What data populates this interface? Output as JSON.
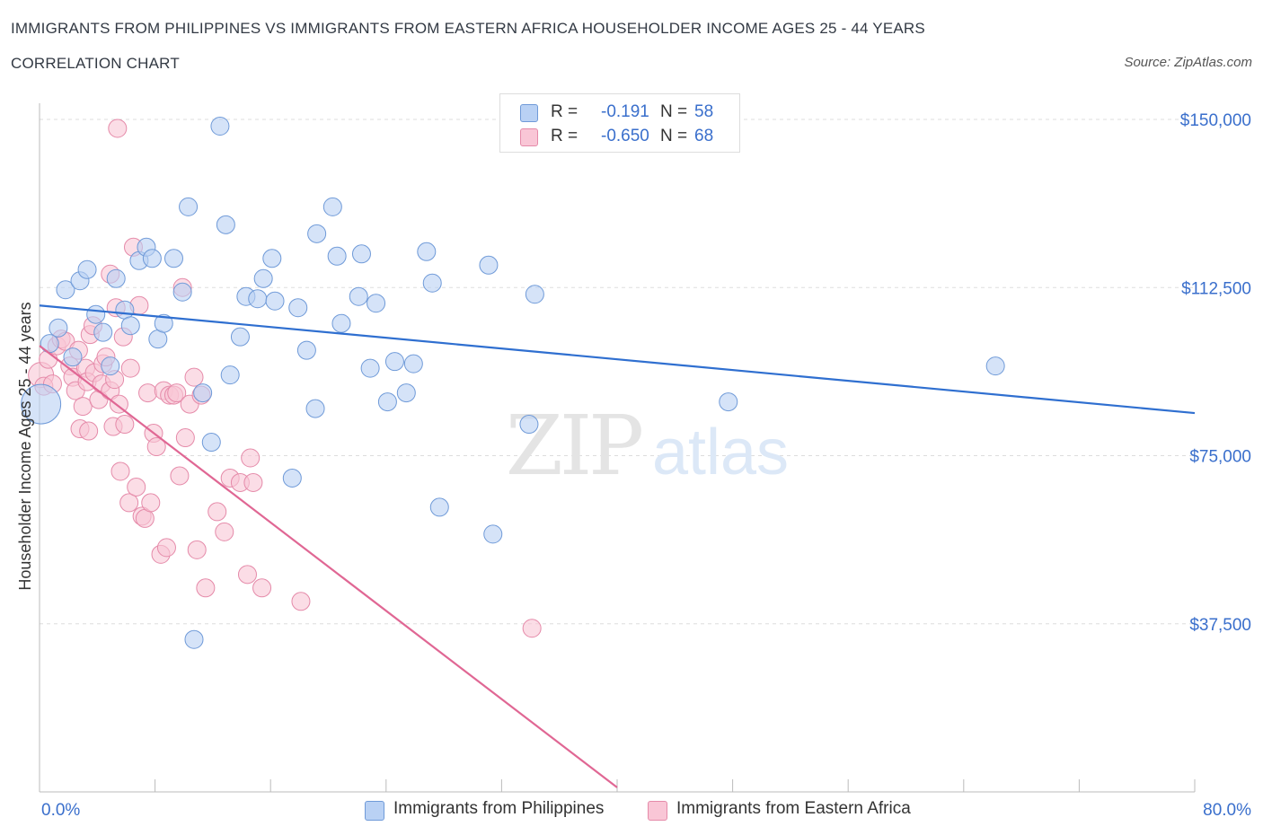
{
  "title": "IMMIGRANTS FROM PHILIPPINES VS IMMIGRANTS FROM EASTERN AFRICA HOUSEHOLDER INCOME AGES 25 - 44 YEARS",
  "subtitle": "CORRELATION CHART",
  "source": "Source: ZipAtlas.com",
  "watermark": {
    "zip": "ZIP",
    "atlas": "atlas"
  },
  "colors": {
    "blue_fill": "#b9d1f4",
    "blue_stroke": "#6f9ad8",
    "blue_line": "#2f6fd0",
    "pink_fill": "#f9c6d6",
    "pink_stroke": "#e58aa9",
    "pink_line": "#e06794",
    "tick_label": "#3a6fcc",
    "grid": "#dddddd"
  },
  "legend_top": {
    "rows": [
      {
        "series": "blue",
        "r_label": "R =",
        "r_value": "-0.191",
        "n_label": "N =",
        "n_value": "58"
      },
      {
        "series": "pink",
        "r_label": "R =",
        "r_value": "-0.650",
        "n_label": "N =",
        "n_value": "68"
      }
    ]
  },
  "legend_bottom": [
    {
      "series": "blue",
      "label": "Immigrants from Philippines"
    },
    {
      "series": "pink",
      "label": "Immigrants from Eastern Africa"
    }
  ],
  "chart_data": {
    "type": "scatter",
    "ylabel": "Householder Income Ages 25 - 44 years",
    "xlim": [
      0,
      80
    ],
    "ylim": [
      0,
      150000
    ],
    "x_tick_labels": [
      {
        "x": 0,
        "label": "0.0%"
      },
      {
        "x": 80,
        "label": "80.0%"
      }
    ],
    "y_ticks": [
      {
        "y": 37500,
        "label": "$37,500"
      },
      {
        "y": 75000,
        "label": "$75,000"
      },
      {
        "y": 112500,
        "label": "$112,500"
      },
      {
        "y": 150000,
        "label": "$150,000"
      }
    ],
    "grid": true,
    "series": [
      {
        "name": "Immigrants from Philippines",
        "color": "blue",
        "r": -0.191,
        "n": 58,
        "trend": {
          "x0": 0,
          "y0": 108500,
          "x1": 80,
          "y1": 84500
        },
        "points": [
          [
            0.1,
            86500,
            2.2
          ],
          [
            0.7,
            100000,
            1
          ],
          [
            1.3,
            103500,
            1
          ],
          [
            1.8,
            112000,
            1
          ],
          [
            2.3,
            97000,
            1
          ],
          [
            2.8,
            114000,
            1
          ],
          [
            3.3,
            116500,
            1
          ],
          [
            3.9,
            106500,
            1
          ],
          [
            4.4,
            102500,
            1
          ],
          [
            4.9,
            95000,
            1
          ],
          [
            5.3,
            114500,
            1
          ],
          [
            5.9,
            107500,
            1
          ],
          [
            6.3,
            104000,
            1
          ],
          [
            6.9,
            118500,
            1
          ],
          [
            7.4,
            121500,
            1
          ],
          [
            7.8,
            119000,
            1
          ],
          [
            8.2,
            101000,
            1
          ],
          [
            8.6,
            104500,
            1
          ],
          [
            9.3,
            119000,
            1
          ],
          [
            9.9,
            111500,
            1
          ],
          [
            10.3,
            130500,
            1
          ],
          [
            11.3,
            89000,
            1
          ],
          [
            11.9,
            78000,
            1
          ],
          [
            12.5,
            148500,
            1
          ],
          [
            12.9,
            126500,
            1
          ],
          [
            13.2,
            93000,
            1
          ],
          [
            13.9,
            101500,
            1
          ],
          [
            14.3,
            110500,
            1
          ],
          [
            15.1,
            110000,
            1
          ],
          [
            15.5,
            114500,
            1
          ],
          [
            16.1,
            119000,
            1
          ],
          [
            16.3,
            109500,
            1
          ],
          [
            17.5,
            70000,
            1
          ],
          [
            17.9,
            108000,
            1
          ],
          [
            18.5,
            98500,
            1
          ],
          [
            19.1,
            85500,
            1
          ],
          [
            19.2,
            124500,
            1
          ],
          [
            20.3,
            130500,
            1
          ],
          [
            20.6,
            119500,
            1
          ],
          [
            20.9,
            104500,
            1
          ],
          [
            22.1,
            110500,
            1
          ],
          [
            22.3,
            120000,
            1
          ],
          [
            22.9,
            94500,
            1
          ],
          [
            23.3,
            109000,
            1
          ],
          [
            24.1,
            87000,
            1
          ],
          [
            24.6,
            96000,
            1
          ],
          [
            25.4,
            89000,
            1
          ],
          [
            25.9,
            95500,
            1
          ],
          [
            26.8,
            120500,
            1
          ],
          [
            27.2,
            113500,
            1
          ],
          [
            27.7,
            63500,
            1
          ],
          [
            31.1,
            117500,
            1
          ],
          [
            31.4,
            57500,
            1
          ],
          [
            33.9,
            82000,
            1
          ],
          [
            34.3,
            111000,
            1
          ],
          [
            47.7,
            87000,
            1
          ],
          [
            66.2,
            95000,
            1
          ],
          [
            10.7,
            34000,
            1
          ]
        ]
      },
      {
        "name": "Immigrants from Eastern Africa",
        "color": "pink",
        "r": -0.65,
        "n": 68,
        "trend": {
          "x0": 0,
          "y0": 99500,
          "x1": 40,
          "y1": 1000
        },
        "points": [
          [
            0.1,
            93000,
            1.4
          ],
          [
            0.3,
            90500,
            1
          ],
          [
            0.6,
            96500,
            1
          ],
          [
            0.9,
            91000,
            1
          ],
          [
            1.2,
            99500,
            1
          ],
          [
            1.5,
            101000,
            1
          ],
          [
            1.8,
            100500,
            1
          ],
          [
            2.1,
            95000,
            1
          ],
          [
            2.3,
            92500,
            1
          ],
          [
            2.5,
            89500,
            1
          ],
          [
            2.7,
            98500,
            1
          ],
          [
            2.8,
            81000,
            1
          ],
          [
            3.0,
            86000,
            1
          ],
          [
            3.2,
            94500,
            1
          ],
          [
            3.4,
            80500,
            1
          ],
          [
            3.3,
            91500,
            1
          ],
          [
            3.5,
            102000,
            1
          ],
          [
            3.7,
            104000,
            1
          ],
          [
            3.8,
            93500,
            1
          ],
          [
            4.1,
            87500,
            1
          ],
          [
            4.3,
            91000,
            1
          ],
          [
            4.4,
            95500,
            1
          ],
          [
            4.6,
            97000,
            1
          ],
          [
            4.9,
            89500,
            1
          ],
          [
            4.9,
            115500,
            1
          ],
          [
            5.1,
            81500,
            1
          ],
          [
            5.2,
            92000,
            1
          ],
          [
            5.3,
            108000,
            1
          ],
          [
            5.5,
            86500,
            1
          ],
          [
            5.8,
            101500,
            1
          ],
          [
            5.6,
            71500,
            1
          ],
          [
            5.9,
            82000,
            1
          ],
          [
            5.4,
            148000,
            1
          ],
          [
            6.2,
            64500,
            1
          ],
          [
            6.3,
            94500,
            1
          ],
          [
            6.5,
            121500,
            1
          ],
          [
            6.7,
            68000,
            1
          ],
          [
            6.9,
            108500,
            1
          ],
          [
            7.1,
            61500,
            1
          ],
          [
            7.3,
            61000,
            1
          ],
          [
            7.5,
            89000,
            1
          ],
          [
            7.7,
            64500,
            1
          ],
          [
            7.9,
            80000,
            1
          ],
          [
            8.1,
            77000,
            1
          ],
          [
            8.4,
            53000,
            1
          ],
          [
            8.6,
            89500,
            1
          ],
          [
            8.8,
            54500,
            1
          ],
          [
            9.0,
            88500,
            1
          ],
          [
            9.3,
            88500,
            1
          ],
          [
            9.5,
            89000,
            1
          ],
          [
            9.7,
            70500,
            1
          ],
          [
            9.9,
            112500,
            1
          ],
          [
            10.1,
            79000,
            1
          ],
          [
            10.4,
            86500,
            1
          ],
          [
            10.7,
            92500,
            1
          ],
          [
            10.9,
            54000,
            1
          ],
          [
            11.2,
            88500,
            1
          ],
          [
            11.5,
            45500,
            1
          ],
          [
            12.3,
            62500,
            1
          ],
          [
            12.8,
            58000,
            1
          ],
          [
            13.2,
            70000,
            1
          ],
          [
            13.9,
            69000,
            1
          ],
          [
            14.4,
            48500,
            1
          ],
          [
            14.6,
            74500,
            1
          ],
          [
            14.8,
            69000,
            1
          ],
          [
            15.4,
            45500,
            1
          ],
          [
            18.1,
            42500,
            1
          ],
          [
            34.1,
            36500,
            1
          ]
        ]
      }
    ]
  }
}
